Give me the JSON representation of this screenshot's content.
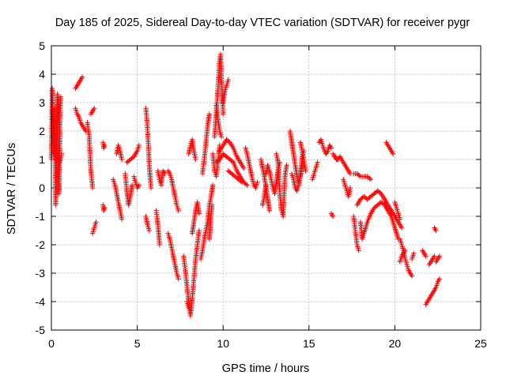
{
  "chart_data": {
    "type": "scatter",
    "title": "Day 185 of 2025, Sidereal Day-to-day VTEC variation (SDTVAR) for receiver pygr",
    "xlabel": "GPS time / hours",
    "ylabel": "SDTVAR / TECUs",
    "xlim": [
      0,
      25
    ],
    "ylim": [
      -5,
      5
    ],
    "xticks": [
      0,
      5,
      10,
      15,
      20,
      25
    ],
    "yticks": [
      -5,
      -4,
      -3,
      -2,
      -1,
      0,
      1,
      2,
      3,
      4,
      5
    ],
    "xtick_labels": [
      "0",
      "5",
      "10",
      "15",
      "20",
      "25"
    ],
    "ytick_labels": [
      "-5",
      "-4",
      "-3",
      "-2",
      "-1",
      "0",
      "1",
      "2",
      "3",
      "4",
      "5"
    ],
    "grid": true,
    "marker": "plus",
    "color": "#ff0000",
    "segments": [
      [
        [
          0.0,
          1.0
        ],
        [
          0.05,
          3.5
        ],
        [
          0.1,
          2.2
        ],
        [
          0.15,
          1.2
        ],
        [
          0.2,
          2.8
        ],
        [
          0.25,
          -0.6
        ],
        [
          0.3,
          2.0
        ],
        [
          0.35,
          3.3
        ],
        [
          0.4,
          1.8
        ],
        [
          0.45,
          -0.2
        ],
        [
          0.5,
          2.6
        ],
        [
          0.55,
          3.2
        ]
      ],
      [
        [
          0.2,
          1.3
        ],
        [
          0.35,
          1.0
        ],
        [
          0.5,
          0.9
        ],
        [
          0.6,
          1.2
        ]
      ],
      [
        [
          1.4,
          3.5
        ],
        [
          1.5,
          3.6
        ],
        [
          1.6,
          3.7
        ],
        [
          1.7,
          3.8
        ],
        [
          1.8,
          3.9
        ]
      ],
      [
        [
          1.4,
          2.8
        ],
        [
          1.5,
          2.6
        ],
        [
          1.6,
          2.5
        ],
        [
          1.7,
          2.3
        ],
        [
          1.8,
          2.2
        ],
        [
          1.9,
          2.1
        ],
        [
          2.0,
          2.0
        ]
      ],
      [
        [
          2.1,
          2.3
        ],
        [
          2.2,
          1.8
        ],
        [
          2.25,
          1.2
        ],
        [
          2.3,
          0.6
        ],
        [
          2.35,
          0.3
        ],
        [
          2.4,
          0.0
        ]
      ],
      [
        [
          2.3,
          2.6
        ],
        [
          2.4,
          2.7
        ],
        [
          2.5,
          2.8
        ]
      ],
      [
        [
          2.4,
          -1.6
        ],
        [
          2.5,
          -1.4
        ],
        [
          2.6,
          -1.2
        ]
      ],
      [
        [
          3.0,
          1.6
        ],
        [
          3.05,
          1.4
        ],
        [
          3.1,
          1.5
        ]
      ],
      [
        [
          3.0,
          -0.6
        ],
        [
          3.05,
          -0.8
        ],
        [
          3.1,
          -0.7
        ]
      ],
      [
        [
          3.6,
          0.3
        ],
        [
          3.7,
          0.1
        ],
        [
          3.8,
          -0.2
        ],
        [
          3.9,
          -0.5
        ],
        [
          4.0,
          -0.8
        ],
        [
          4.1,
          -1.1
        ]
      ],
      [
        [
          3.8,
          1.2
        ],
        [
          3.9,
          1.5
        ],
        [
          4.0,
          1.3
        ],
        [
          4.1,
          1.0
        ]
      ],
      [
        [
          4.3,
          0.5
        ],
        [
          4.4,
          -0.2
        ],
        [
          4.5,
          -0.6
        ],
        [
          4.6,
          -0.3
        ],
        [
          4.7,
          0.1
        ]
      ],
      [
        [
          4.4,
          0.9
        ],
        [
          4.6,
          1.0
        ],
        [
          4.8,
          1.1
        ],
        [
          5.0,
          1.3
        ],
        [
          5.1,
          1.5
        ]
      ],
      [
        [
          4.8,
          0.4
        ],
        [
          4.9,
          0.2
        ],
        [
          5.0,
          0.0
        ],
        [
          5.1,
          0.1
        ]
      ],
      [
        [
          5.5,
          2.8
        ],
        [
          5.55,
          2.5
        ],
        [
          5.6,
          2.0
        ],
        [
          5.65,
          1.5
        ],
        [
          5.7,
          0.8
        ],
        [
          5.75,
          0.4
        ],
        [
          5.8,
          0.0
        ]
      ],
      [
        [
          5.5,
          -1.0
        ],
        [
          5.6,
          -1.3
        ],
        [
          5.7,
          -1.5
        ]
      ],
      [
        [
          6.1,
          -0.8
        ],
        [
          6.15,
          -1.0
        ],
        [
          6.2,
          -1.3
        ],
        [
          6.25,
          -1.6
        ],
        [
          6.3,
          -2.0
        ]
      ],
      [
        [
          6.2,
          0.6
        ],
        [
          6.3,
          0.3
        ],
        [
          6.4,
          0.1
        ]
      ],
      [
        [
          6.4,
          0.2
        ],
        [
          6.5,
          0.6
        ],
        [
          6.6,
          0.5
        ]
      ],
      [
        [
          6.8,
          0.6
        ],
        [
          6.9,
          0.5
        ],
        [
          7.0,
          0.3
        ],
        [
          7.1,
          0.0
        ],
        [
          7.2,
          -0.3
        ],
        [
          7.3,
          -0.6
        ],
        [
          7.4,
          -0.8
        ]
      ],
      [
        [
          6.8,
          -1.6
        ],
        [
          6.9,
          -1.8
        ],
        [
          7.0,
          -2.1
        ],
        [
          7.1,
          -2.4
        ],
        [
          7.2,
          -2.7
        ],
        [
          7.3,
          -3.0
        ],
        [
          7.4,
          -3.2
        ]
      ],
      [
        [
          7.7,
          -2.4
        ],
        [
          7.8,
          -2.9
        ],
        [
          7.9,
          -3.5
        ],
        [
          8.0,
          -4.0
        ],
        [
          8.05,
          -4.3
        ],
        [
          8.1,
          -4.5
        ],
        [
          8.2,
          -3.9
        ],
        [
          8.3,
          -3.2
        ],
        [
          8.4,
          -2.5
        ],
        [
          8.5,
          -2.0
        ],
        [
          8.6,
          -1.5
        ]
      ],
      [
        [
          7.9,
          -4.0
        ],
        [
          8.0,
          -4.2
        ]
      ],
      [
        [
          8.0,
          1.2
        ],
        [
          8.1,
          1.5
        ],
        [
          8.2,
          1.7
        ],
        [
          8.3,
          1.3
        ],
        [
          8.4,
          1.0
        ]
      ],
      [
        [
          8.2,
          -1.6
        ],
        [
          8.3,
          -1.2
        ],
        [
          8.4,
          -0.8
        ],
        [
          8.5,
          -0.5
        ],
        [
          8.6,
          -0.9
        ]
      ],
      [
        [
          8.7,
          -2.5
        ],
        [
          8.8,
          -2.2
        ],
        [
          8.9,
          -1.8
        ],
        [
          9.0,
          -1.5
        ],
        [
          9.1,
          -1.2
        ],
        [
          9.2,
          -0.6
        ],
        [
          9.3,
          -0.3
        ],
        [
          9.4,
          0.1
        ]
      ],
      [
        [
          8.8,
          0.5
        ],
        [
          8.9,
          1.0
        ],
        [
          9.0,
          1.6
        ],
        [
          9.1,
          2.2
        ],
        [
          9.2,
          2.6
        ]
      ],
      [
        [
          9.2,
          -1.8
        ],
        [
          9.25,
          -1.4
        ],
        [
          9.3,
          -1.0
        ],
        [
          9.35,
          -0.6
        ]
      ],
      [
        [
          9.4,
          1.2
        ],
        [
          9.5,
          0.6
        ],
        [
          9.6,
          0.4
        ],
        [
          9.7,
          0.9
        ],
        [
          9.8,
          1.5
        ]
      ],
      [
        [
          9.5,
          1.8
        ],
        [
          9.6,
          2.6
        ],
        [
          9.7,
          3.5
        ],
        [
          9.75,
          4.0
        ],
        [
          9.8,
          4.5
        ],
        [
          9.85,
          4.7
        ],
        [
          9.9,
          3.9
        ],
        [
          9.95,
          3.2
        ],
        [
          10.0,
          2.6
        ]
      ],
      [
        [
          9.6,
          2.9
        ],
        [
          9.7,
          2.4
        ],
        [
          9.8,
          2.0
        ],
        [
          9.9,
          1.8
        ]
      ],
      [
        [
          10.0,
          3.0
        ],
        [
          10.1,
          3.4
        ],
        [
          10.2,
          3.6
        ],
        [
          10.3,
          3.8
        ]
      ],
      [
        [
          9.8,
          1.3
        ],
        [
          10.0,
          1.5
        ],
        [
          10.2,
          1.7
        ],
        [
          10.4,
          1.6
        ],
        [
          10.6,
          1.4
        ],
        [
          10.8,
          1.1
        ],
        [
          11.0,
          0.9
        ],
        [
          11.2,
          0.7
        ]
      ],
      [
        [
          9.6,
          0.9
        ],
        [
          9.8,
          1.0
        ],
        [
          10.0,
          1.2
        ],
        [
          10.2,
          1.1
        ],
        [
          10.4,
          1.0
        ],
        [
          10.6,
          0.9
        ],
        [
          10.8,
          0.6
        ],
        [
          11.0,
          0.4
        ],
        [
          11.2,
          0.2
        ],
        [
          11.4,
          0.1
        ]
      ],
      [
        [
          10.3,
          0.6
        ],
        [
          10.5,
          0.5
        ],
        [
          10.7,
          0.4
        ],
        [
          10.9,
          0.3
        ],
        [
          11.1,
          0.2
        ]
      ],
      [
        [
          11.3,
          1.4
        ],
        [
          11.4,
          1.2
        ],
        [
          11.5,
          0.9
        ],
        [
          11.6,
          0.6
        ],
        [
          11.7,
          0.3
        ],
        [
          11.8,
          0.1
        ],
        [
          11.9,
          0.0
        ],
        [
          12.0,
          0.2
        ]
      ],
      [
        [
          12.2,
          1.0
        ],
        [
          12.3,
          0.7
        ],
        [
          12.4,
          0.4
        ],
        [
          12.5,
          0.0
        ],
        [
          12.6,
          -0.4
        ],
        [
          12.7,
          -0.8
        ]
      ],
      [
        [
          12.3,
          -0.6
        ],
        [
          12.4,
          -0.3
        ],
        [
          12.5,
          0.1
        ]
      ],
      [
        [
          12.5,
          0.5
        ],
        [
          12.6,
          0.8
        ],
        [
          12.7,
          0.6
        ],
        [
          12.8,
          0.3
        ],
        [
          12.9,
          0.0
        ],
        [
          13.0,
          -0.2
        ],
        [
          13.1,
          0.2
        ],
        [
          13.2,
          0.6
        ],
        [
          13.3,
          0.9
        ]
      ],
      [
        [
          13.1,
          1.2
        ],
        [
          13.2,
          0.9
        ],
        [
          13.3,
          -0.2
        ],
        [
          13.4,
          -0.8
        ],
        [
          13.5,
          -1.0
        ],
        [
          13.6,
          0.4
        ],
        [
          13.7,
          0.8
        ]
      ],
      [
        [
          13.9,
          2.0
        ],
        [
          14.0,
          1.6
        ],
        [
          14.1,
          1.2
        ],
        [
          14.2,
          0.8
        ],
        [
          14.3,
          0.4
        ],
        [
          14.4,
          0.2
        ],
        [
          14.5,
          0.4
        ],
        [
          14.6,
          0.8
        ]
      ],
      [
        [
          14.0,
          0.5
        ],
        [
          14.1,
          0.3
        ],
        [
          14.2,
          0.0
        ],
        [
          14.3,
          -0.1
        ],
        [
          14.4,
          0.1
        ],
        [
          14.5,
          0.5
        ],
        [
          14.6,
          1.1
        ],
        [
          14.7,
          1.3
        ]
      ],
      [
        [
          14.5,
          1.6
        ],
        [
          14.6,
          1.3
        ],
        [
          14.7,
          1.0
        ],
        [
          14.8,
          0.6
        ]
      ],
      [
        [
          15.2,
          0.3
        ],
        [
          15.3,
          0.5
        ],
        [
          15.4,
          0.7
        ],
        [
          15.5,
          0.9
        ]
      ],
      [
        [
          15.6,
          1.6
        ],
        [
          15.7,
          1.7
        ],
        [
          15.8,
          1.5
        ],
        [
          15.9,
          1.3
        ],
        [
          16.0,
          1.2
        ],
        [
          16.1,
          1.3
        ],
        [
          16.2,
          1.5
        ],
        [
          16.3,
          1.4
        ]
      ],
      [
        [
          16.4,
          1.2
        ],
        [
          16.5,
          1.1
        ],
        [
          16.6,
          1.0
        ],
        [
          16.7,
          1.0
        ],
        [
          16.8,
          1.1
        ],
        [
          16.9,
          1.0
        ],
        [
          17.0,
          0.9
        ],
        [
          17.1,
          0.8
        ],
        [
          17.2,
          0.7
        ],
        [
          17.3,
          0.6
        ],
        [
          17.4,
          0.5
        ]
      ],
      [
        [
          16.3,
          -0.9
        ],
        [
          16.4,
          -1.0
        ]
      ],
      [
        [
          17.0,
          0.3
        ],
        [
          17.1,
          0.1
        ],
        [
          17.2,
          -0.1
        ],
        [
          17.3,
          -0.3
        ],
        [
          17.4,
          0.0
        ]
      ],
      [
        [
          17.6,
          0.5
        ],
        [
          17.8,
          0.5
        ],
        [
          18.0,
          0.4
        ],
        [
          18.2,
          0.4
        ],
        [
          18.4,
          0.4
        ],
        [
          18.6,
          0.3
        ]
      ],
      [
        [
          17.6,
          -1.0
        ],
        [
          17.7,
          -1.5
        ],
        [
          17.8,
          -2.0
        ],
        [
          17.9,
          -2.2
        ]
      ],
      [
        [
          17.8,
          -0.6
        ],
        [
          18.0,
          -0.4
        ],
        [
          18.2,
          -0.3
        ],
        [
          18.4,
          -0.4
        ],
        [
          18.6,
          -0.3
        ],
        [
          18.8,
          -0.2
        ],
        [
          19.0,
          -0.1
        ],
        [
          19.2,
          -0.2
        ],
        [
          19.4,
          -0.4
        ],
        [
          19.6,
          -0.6
        ],
        [
          19.8,
          -0.8
        ],
        [
          20.0,
          -1.0
        ],
        [
          20.2,
          -1.2
        ],
        [
          20.4,
          -1.4
        ]
      ],
      [
        [
          18.0,
          -1.2
        ],
        [
          18.1,
          -1.8
        ],
        [
          18.2,
          -1.6
        ],
        [
          18.4,
          -1.2
        ],
        [
          18.6,
          -0.9
        ],
        [
          18.8,
          -0.7
        ],
        [
          19.0,
          -0.6
        ],
        [
          19.2,
          -0.5
        ],
        [
          19.4,
          -0.6
        ],
        [
          19.6,
          -0.8
        ],
        [
          19.8,
          -1.0
        ],
        [
          20.0,
          -1.4
        ],
        [
          20.2,
          -1.8
        ]
      ],
      [
        [
          19.5,
          1.6
        ],
        [
          19.6,
          1.5
        ],
        [
          19.7,
          1.4
        ],
        [
          19.8,
          1.3
        ],
        [
          19.9,
          1.2
        ]
      ],
      [
        [
          20.0,
          -0.5
        ],
        [
          20.1,
          -0.7
        ],
        [
          20.2,
          -0.9
        ],
        [
          20.3,
          -1.1
        ]
      ],
      [
        [
          20.3,
          -1.8
        ],
        [
          20.4,
          -2.0
        ],
        [
          20.5,
          -2.2
        ],
        [
          20.6,
          -2.5
        ],
        [
          20.7,
          -2.7
        ],
        [
          20.8,
          -2.9
        ],
        [
          20.9,
          -3.0
        ],
        [
          21.0,
          -3.1
        ]
      ],
      [
        [
          20.3,
          -2.6
        ],
        [
          20.4,
          -2.4
        ],
        [
          20.5,
          -2.3
        ],
        [
          20.6,
          -2.2
        ]
      ],
      [
        [
          21.0,
          -2.5
        ],
        [
          21.1,
          -2.3
        ]
      ],
      [
        [
          21.6,
          -2.2
        ],
        [
          21.7,
          -2.3
        ],
        [
          21.8,
          -2.4
        ]
      ],
      [
        [
          21.8,
          -4.1
        ],
        [
          21.9,
          -4.0
        ],
        [
          22.0,
          -3.9
        ],
        [
          22.1,
          -3.8
        ],
        [
          22.2,
          -3.7
        ],
        [
          22.3,
          -3.6
        ],
        [
          22.4,
          -3.5
        ],
        [
          22.5,
          -3.3
        ],
        [
          22.6,
          -3.2
        ]
      ],
      [
        [
          22.0,
          -2.7
        ],
        [
          22.1,
          -2.6
        ],
        [
          22.2,
          -2.5
        ],
        [
          22.3,
          -2.4
        ]
      ],
      [
        [
          22.3,
          -1.4
        ],
        [
          22.4,
          -1.5
        ]
      ],
      [
        [
          22.4,
          -2.6
        ],
        [
          22.5,
          -2.5
        ],
        [
          22.6,
          -2.4
        ]
      ]
    ]
  }
}
